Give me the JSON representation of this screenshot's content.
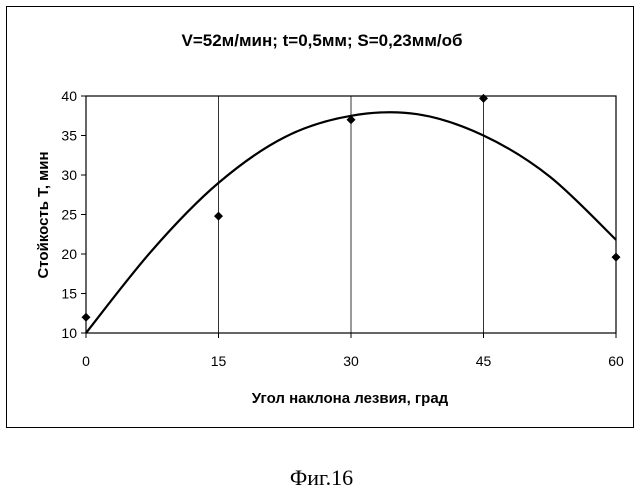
{
  "chart_data": {
    "type": "scatter",
    "title": "V=52м/мин; t=0,5мм; S=0,23мм/об",
    "xlabel": "Угол наклона лезвия, град",
    "ylabel": "Стойкость Т, мин",
    "xlim": [
      0,
      60
    ],
    "ylim": [
      10,
      40
    ],
    "xticks": [
      0,
      15,
      30,
      45,
      60
    ],
    "yticks": [
      10,
      15,
      20,
      25,
      30,
      35,
      40
    ],
    "grid": "vertical",
    "series": [
      {
        "type": "scatter",
        "marker": "diamond",
        "x": [
          0,
          15,
          30,
          45,
          60
        ],
        "y": [
          12,
          24.8,
          37,
          39.7,
          19.6
        ]
      },
      {
        "type": "line",
        "smooth": true,
        "x": [
          0,
          7.5,
          15,
          22.5,
          30,
          37.5,
          45,
          52.5,
          60
        ],
        "y": [
          10,
          20.5,
          29,
          34.8,
          37.5,
          37.7,
          35,
          29.8,
          21.8
        ]
      }
    ],
    "colors": {
      "marker": "#000000",
      "line": "#000000",
      "axes": "#000000"
    }
  },
  "caption": "Фиг.16"
}
